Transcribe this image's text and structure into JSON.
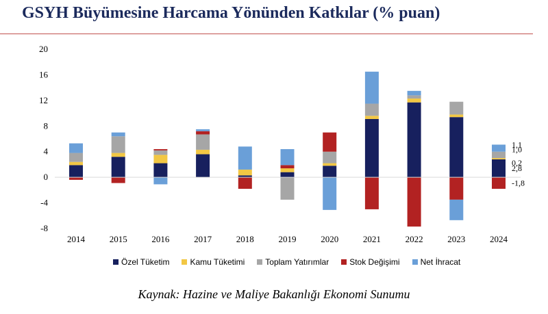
{
  "header": {
    "title": "GSYH Büyümesine Harcama Yönünden Katkılar (% puan)"
  },
  "source": "Kaynak: Hazine ve Maliye Bakanlığı Ekonomi Sunumu",
  "chart_data": {
    "type": "bar",
    "stacked": true,
    "title": "GSYH Büyümesine Harcama Yönünden Katkılar (% puan)",
    "xlabel": "",
    "ylabel": "",
    "ylim": [
      -8,
      20
    ],
    "yticks": [
      -8,
      -4,
      0,
      4,
      8,
      12,
      16,
      20
    ],
    "grid": false,
    "legend_position": "bottom",
    "categories": [
      "2014",
      "2015",
      "2016",
      "2017",
      "2018",
      "2019",
      "2020",
      "2021",
      "2022",
      "2023",
      "2024"
    ],
    "series": [
      {
        "name": "Özel Tüketim",
        "color": "#17205e",
        "values": [
          1.9,
          3.2,
          2.2,
          3.6,
          0.3,
          0.8,
          1.8,
          9.1,
          11.7,
          9.4,
          2.8
        ]
      },
      {
        "name": "Kamu Tüketimi",
        "color": "#f2c744",
        "values": [
          0.5,
          0.6,
          1.3,
          0.7,
          0.9,
          0.6,
          0.4,
          0.5,
          0.6,
          0.4,
          0.2
        ]
      },
      {
        "name": "Toplam Yatırımlar",
        "color": "#a6a6a6",
        "values": [
          1.4,
          2.6,
          0.7,
          2.4,
          0.0,
          -3.5,
          1.8,
          1.9,
          0.5,
          2.0,
          1.0
        ]
      },
      {
        "name": "Stok Değişimi",
        "color": "#b22222",
        "values": [
          -0.4,
          -0.9,
          0.2,
          0.5,
          -1.8,
          0.5,
          3.0,
          -5.0,
          -7.7,
          -3.5,
          -1.8
        ]
      },
      {
        "name": "Net İhracat",
        "color": "#6a9fd8",
        "values": [
          1.5,
          0.6,
          -1.1,
          0.3,
          3.6,
          2.5,
          -5.1,
          5.0,
          0.7,
          -3.2,
          1.1
        ]
      }
    ],
    "data_labels": [
      {
        "category": "2024",
        "series": "Net İhracat",
        "text": "1,1"
      },
      {
        "category": "2024",
        "series": "Toplam Yatırımlar",
        "text": "1,0"
      },
      {
        "category": "2024",
        "series": "Kamu Tüketimi",
        "text": "0,2"
      },
      {
        "category": "2024",
        "series": "Özel Tüketim",
        "text": "2,8"
      },
      {
        "category": "2024",
        "series": "Stok Değişimi",
        "text": "-1,8"
      }
    ]
  }
}
